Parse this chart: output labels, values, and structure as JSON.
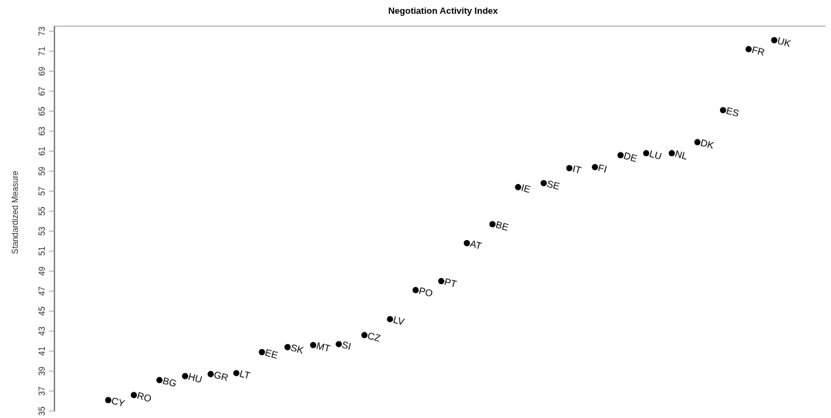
{
  "chart_data": {
    "type": "scatter",
    "title": "Negotiation Activity Index",
    "ylabel": "Standardized Measure",
    "categories": [
      "CY",
      "RO",
      "BG",
      "HU",
      "GR",
      "LT",
      "EE",
      "SK",
      "MT",
      "SI",
      "CZ",
      "LV",
      "PO",
      "PT",
      "AT",
      "BE",
      "IE",
      "SE",
      "IT",
      "FI",
      "DE",
      "LU",
      "NL",
      "DK",
      "ES",
      "FR",
      "UK"
    ],
    "values": [
      36.1,
      36.6,
      38.1,
      38.5,
      38.7,
      38.8,
      40.9,
      41.4,
      41.6,
      41.7,
      42.6,
      44.2,
      47.1,
      48.0,
      51.8,
      53.7,
      57.4,
      57.8,
      59.3,
      59.4,
      60.6,
      60.8,
      60.8,
      61.9,
      65.1,
      71.2,
      72.1
    ],
    "color": "#000000",
    "marker": "circle",
    "ylim": [
      35,
      73.5
    ],
    "yticks": [
      35,
      37,
      39,
      41,
      43,
      45,
      47,
      49,
      51,
      53,
      55,
      57,
      59,
      61,
      63,
      65,
      67,
      69,
      71,
      73
    ],
    "tick_labels": "y",
    "grid": false,
    "legend": false
  }
}
